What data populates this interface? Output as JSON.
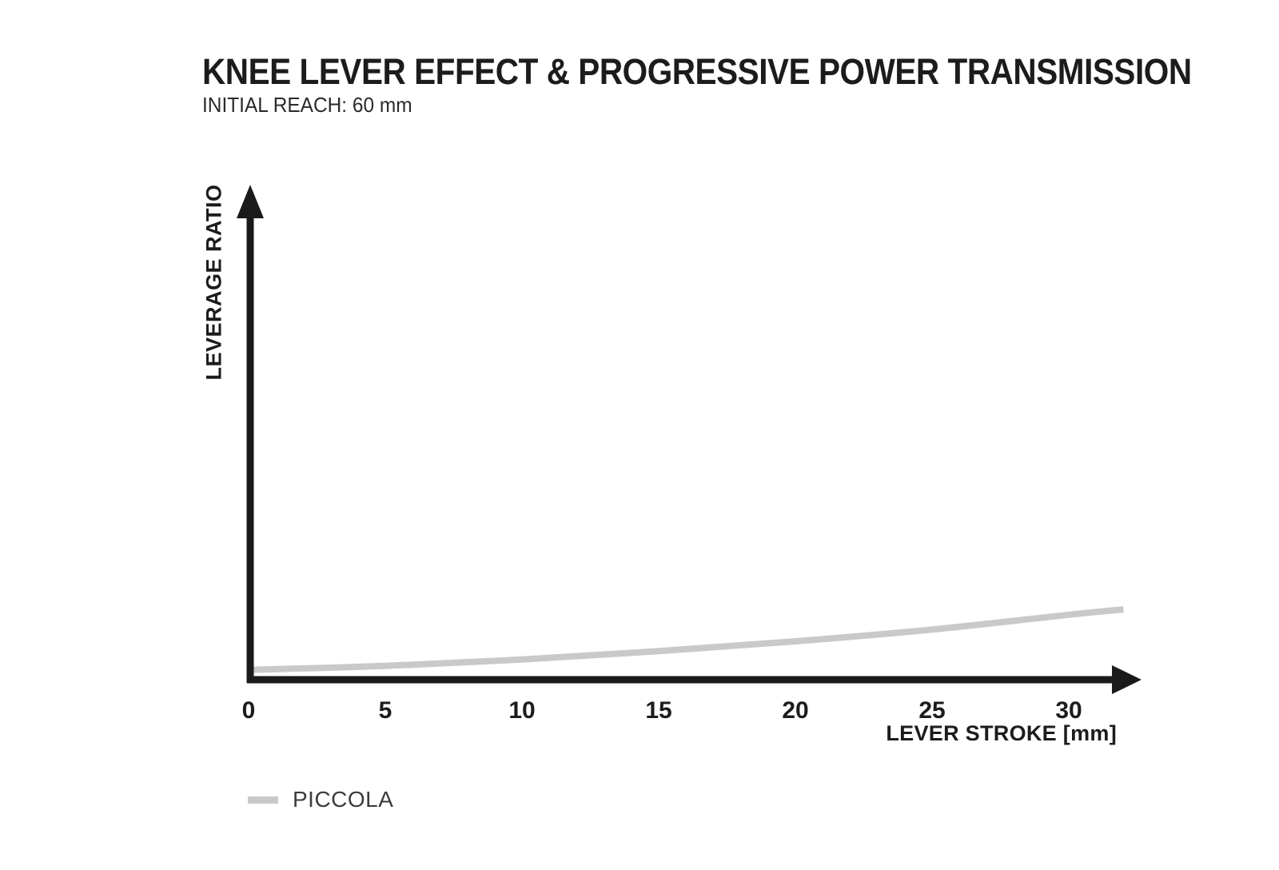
{
  "header": {
    "title": "KNEE LEVER EFFECT & PROGRESSIVE POWER TRANSMISSION",
    "subtitle": "INITIAL REACH: 60 mm"
  },
  "chart_data": {
    "type": "line",
    "title": "KNEE LEVER EFFECT & PROGRESSIVE POWER TRANSMISSION",
    "subtitle": "INITIAL REACH: 60 mm",
    "xlabel": "LEVER STROKE [mm]",
    "ylabel": "LEVERAGE RATIO",
    "x_ticks": [
      0,
      5,
      10,
      15,
      20,
      25,
      30
    ],
    "y_ticks": [],
    "x_range": [
      0,
      32
    ],
    "grid": false,
    "legend_position": "bottom-left",
    "notes": "Y axis has no tick labels; curve values are relative heights (fraction of visible axis height). Curve rises progressively (convex).",
    "series": [
      {
        "name": "PICCOLA",
        "color": "#c9c9c9",
        "x": [
          0,
          5,
          10,
          15,
          20,
          25,
          30,
          32
        ],
        "y_relative": [
          0.02,
          0.028,
          0.041,
          0.058,
          0.078,
          0.102,
          0.132,
          0.143
        ]
      }
    ]
  },
  "legend": {
    "items": [
      {
        "label": "PICCOLA",
        "color": "#c9c9c9"
      }
    ]
  },
  "colors": {
    "background": "#ffffff",
    "axis": "#1a1a1a",
    "text": "#1c1c1c",
    "curve": "#c9c9c9"
  }
}
